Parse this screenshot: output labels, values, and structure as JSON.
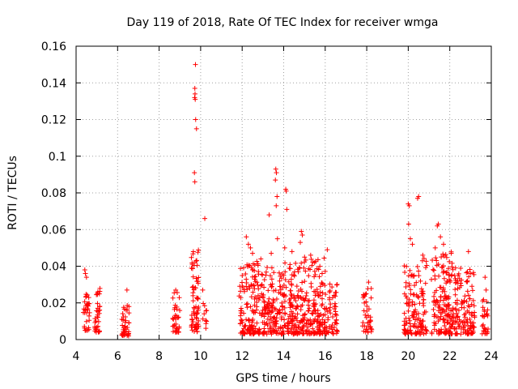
{
  "chart_data": {
    "type": "scatter",
    "title": "Day 119 of 2018, Rate Of TEC Index for receiver wmga",
    "xlabel": "GPS time / hours",
    "ylabel": "ROTI / TECUs",
    "xlim": [
      4,
      24
    ],
    "ylim": [
      0,
      0.16
    ],
    "grid": true,
    "marker": "+",
    "marker_color": "#ff0000",
    "xticks": [
      "4",
      "6",
      "8",
      "10",
      "12",
      "14",
      "16",
      "18",
      "20",
      "22",
      "24"
    ],
    "yticks": [
      "0",
      "0.02",
      "0.04",
      "0.06",
      "0.08",
      "0.1",
      "0.12",
      "0.14",
      "0.16"
    ],
    "clusters": [
      {
        "x": [
          4.35,
          4.65
        ],
        "ymin": 0.005,
        "ymax": 0.026,
        "count": 35
      },
      {
        "x": [
          4.9,
          5.15
        ],
        "ymin": 0.004,
        "ymax": 0.028,
        "count": 35
      },
      {
        "x": [
          6.2,
          6.55
        ],
        "ymin": 0.002,
        "ymax": 0.022,
        "count": 45
      },
      {
        "x": [
          8.65,
          9.0
        ],
        "ymin": 0.004,
        "ymax": 0.026,
        "count": 35
      },
      {
        "x": [
          9.55,
          9.9
        ],
        "ymin": 0.004,
        "ymax": 0.05,
        "count": 70
      },
      {
        "x": [
          10.05,
          10.3
        ],
        "ymin": 0.006,
        "ymax": 0.02,
        "count": 10
      },
      {
        "x": [
          11.85,
          12.9
        ],
        "ymin": 0.003,
        "ymax": 0.045,
        "count": 140
      },
      {
        "x": [
          12.9,
          13.9
        ],
        "ymin": 0.003,
        "ymax": 0.04,
        "count": 130
      },
      {
        "x": [
          13.9,
          14.9
        ],
        "ymin": 0.003,
        "ymax": 0.042,
        "count": 150
      },
      {
        "x": [
          14.9,
          16.0
        ],
        "ymin": 0.003,
        "ymax": 0.045,
        "count": 160
      },
      {
        "x": [
          15.95,
          16.6
        ],
        "ymin": 0.003,
        "ymax": 0.032,
        "count": 60
      },
      {
        "x": [
          17.8,
          18.25
        ],
        "ymin": 0.004,
        "ymax": 0.032,
        "count": 40
      },
      {
        "x": [
          19.8,
          20.9
        ],
        "ymin": 0.003,
        "ymax": 0.045,
        "count": 140
      },
      {
        "x": [
          21.1,
          22.2
        ],
        "ymin": 0.003,
        "ymax": 0.048,
        "count": 160
      },
      {
        "x": [
          22.2,
          23.2
        ],
        "ymin": 0.003,
        "ymax": 0.04,
        "count": 130
      },
      {
        "x": [
          23.55,
          23.85
        ],
        "ymin": 0.003,
        "ymax": 0.022,
        "count": 30
      }
    ],
    "outliers": [
      {
        "x": 4.45,
        "y": 0.036
      },
      {
        "x": 4.5,
        "y": 0.034
      },
      {
        "x": 4.42,
        "y": 0.038
      },
      {
        "x": 5.05,
        "y": 0.026
      },
      {
        "x": 6.45,
        "y": 0.027
      },
      {
        "x": 8.8,
        "y": 0.027
      },
      {
        "x": 9.75,
        "y": 0.15
      },
      {
        "x": 9.72,
        "y": 0.137
      },
      {
        "x": 9.73,
        "y": 0.134
      },
      {
        "x": 9.71,
        "y": 0.132
      },
      {
        "x": 9.74,
        "y": 0.131
      },
      {
        "x": 9.76,
        "y": 0.12
      },
      {
        "x": 9.8,
        "y": 0.115
      },
      {
        "x": 9.7,
        "y": 0.091
      },
      {
        "x": 9.72,
        "y": 0.086
      },
      {
        "x": 10.2,
        "y": 0.066
      },
      {
        "x": 10.1,
        "y": 0.027
      },
      {
        "x": 12.2,
        "y": 0.056
      },
      {
        "x": 12.3,
        "y": 0.052
      },
      {
        "x": 12.4,
        "y": 0.05
      },
      {
        "x": 12.5,
        "y": 0.047
      },
      {
        "x": 12.9,
        "y": 0.044
      },
      {
        "x": 13.3,
        "y": 0.068
      },
      {
        "x": 13.4,
        "y": 0.047
      },
      {
        "x": 13.62,
        "y": 0.093
      },
      {
        "x": 13.65,
        "y": 0.091
      },
      {
        "x": 13.6,
        "y": 0.087
      },
      {
        "x": 13.68,
        "y": 0.078
      },
      {
        "x": 13.64,
        "y": 0.073
      },
      {
        "x": 13.7,
        "y": 0.055
      },
      {
        "x": 14.1,
        "y": 0.082
      },
      {
        "x": 14.12,
        "y": 0.081
      },
      {
        "x": 14.15,
        "y": 0.071
      },
      {
        "x": 14.05,
        "y": 0.05
      },
      {
        "x": 14.4,
        "y": 0.048
      },
      {
        "x": 14.85,
        "y": 0.059
      },
      {
        "x": 14.9,
        "y": 0.057
      },
      {
        "x": 14.8,
        "y": 0.053
      },
      {
        "x": 15.3,
        "y": 0.046
      },
      {
        "x": 16.1,
        "y": 0.049
      },
      {
        "x": 20.0,
        "y": 0.074
      },
      {
        "x": 20.05,
        "y": 0.073
      },
      {
        "x": 20.02,
        "y": 0.063
      },
      {
        "x": 20.45,
        "y": 0.077
      },
      {
        "x": 20.5,
        "y": 0.078
      },
      {
        "x": 20.1,
        "y": 0.055
      },
      {
        "x": 20.2,
        "y": 0.052
      },
      {
        "x": 20.7,
        "y": 0.046
      },
      {
        "x": 21.4,
        "y": 0.062
      },
      {
        "x": 21.45,
        "y": 0.063
      },
      {
        "x": 21.55,
        "y": 0.056
      },
      {
        "x": 21.7,
        "y": 0.052
      },
      {
        "x": 21.3,
        "y": 0.05
      },
      {
        "x": 22.9,
        "y": 0.048
      },
      {
        "x": 23.7,
        "y": 0.034
      },
      {
        "x": 23.75,
        "y": 0.027
      }
    ]
  }
}
